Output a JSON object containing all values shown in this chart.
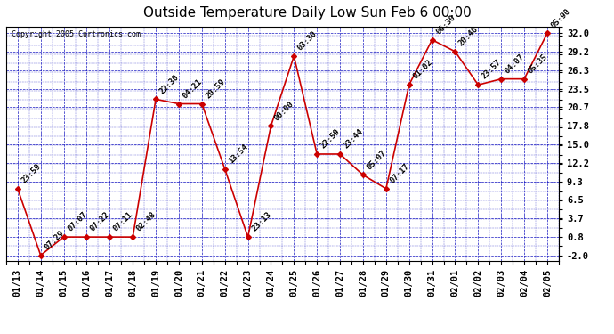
{
  "title": "Outside Temperature Daily Low Sun Feb 6 00:00",
  "copyright": "Copyright 2005 Curtronics.com",
  "x_labels": [
    "01/13",
    "01/14",
    "01/15",
    "01/16",
    "01/17",
    "01/18",
    "01/19",
    "01/20",
    "01/21",
    "01/22",
    "01/23",
    "01/24",
    "01/25",
    "01/26",
    "01/27",
    "01/28",
    "01/29",
    "01/30",
    "01/31",
    "02/01",
    "02/02",
    "02/03",
    "02/04",
    "02/05"
  ],
  "y_values": [
    8.2,
    -2.0,
    0.8,
    0.8,
    0.8,
    0.8,
    21.9,
    21.2,
    21.2,
    11.2,
    0.8,
    17.8,
    28.5,
    13.5,
    13.5,
    10.3,
    8.2,
    24.1,
    31.0,
    29.2,
    24.1,
    25.0,
    25.0,
    32.0
  ],
  "time_labels": [
    "23:59",
    "07:29",
    "07:07",
    "07:22",
    "07:11",
    "02:48",
    "22:30",
    "04:21",
    "20:59",
    "13:54",
    "23:13",
    "00:00",
    "03:30",
    "22:59",
    "23:44",
    "05:07",
    "07:17",
    "01:02",
    "06:30",
    "20:46",
    "23:57",
    "04:07",
    "05:35",
    "05:90"
  ],
  "yticks": [
    -2.0,
    0.8,
    3.7,
    6.5,
    9.3,
    12.2,
    15.0,
    17.8,
    20.7,
    23.5,
    26.3,
    29.2,
    32.0
  ],
  "ylim": [
    -2.8,
    33.0
  ],
  "xlim": [
    -0.5,
    23.5
  ],
  "line_color": "#cc0000",
  "marker_color": "#cc0000",
  "bg_color": "#ffffff",
  "plot_bg_color": "#ffffff",
  "grid_color": "#0000bb",
  "title_color": "#000000",
  "axis_label_color": "#000000",
  "annotation_color": "#000000",
  "title_fontsize": 11,
  "tick_fontsize": 7.5,
  "annotation_fontsize": 6.5,
  "figsize": [
    6.9,
    3.75
  ],
  "dpi": 100
}
